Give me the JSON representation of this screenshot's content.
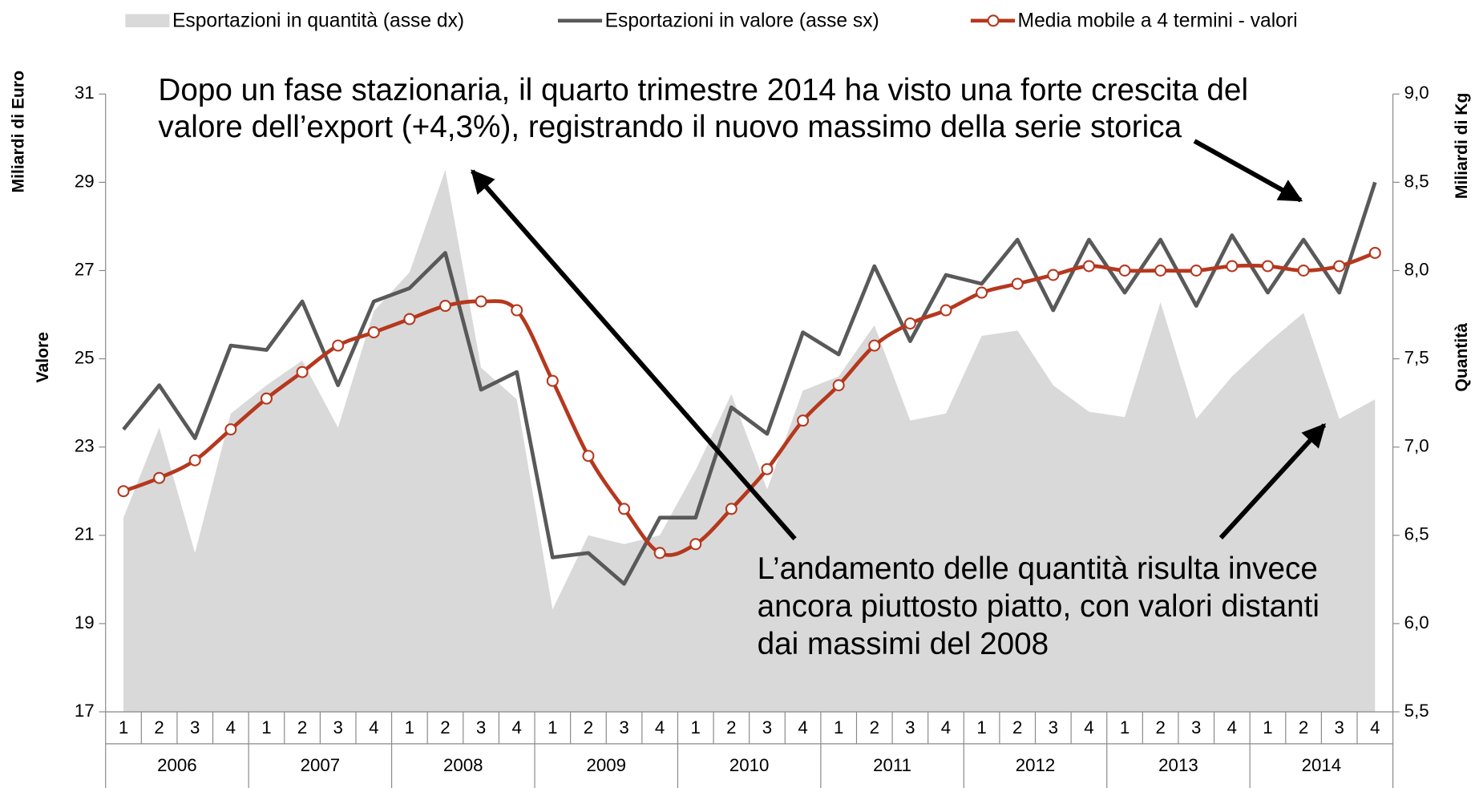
{
  "chart_data": {
    "type": "combo",
    "legend": {
      "position": "top"
    },
    "categories": [
      "1",
      "2",
      "3",
      "4",
      "1",
      "2",
      "3",
      "4",
      "1",
      "2",
      "3",
      "4",
      "1",
      "2",
      "3",
      "4",
      "1",
      "2",
      "3",
      "4",
      "1",
      "2",
      "3",
      "4",
      "1",
      "2",
      "3",
      "4",
      "1",
      "2",
      "3",
      "4",
      "1",
      "2",
      "3",
      "4"
    ],
    "groups": [
      "2006",
      "2007",
      "2008",
      "2009",
      "2010",
      "2011",
      "2012",
      "2013",
      "2014"
    ],
    "ylabel_top": "Miliardi di Euro",
    "ylabel": "Valore",
    "y2label_top": "Miliardi di Kg",
    "y2label": "Quantità",
    "ylim": [
      17,
      31
    ],
    "yticks": [
      17,
      19,
      21,
      23,
      25,
      27,
      29,
      31
    ],
    "y2lim": [
      5.5,
      9.0
    ],
    "y2ticks": [
      {
        "value": 5.5,
        "label": "5,5"
      },
      {
        "value": 6.0,
        "label": "6,0"
      },
      {
        "value": 6.5,
        "label": "6,5"
      },
      {
        "value": 7.0,
        "label": "7,0"
      },
      {
        "value": 7.5,
        "label": "7,5"
      },
      {
        "value": 8.0,
        "label": "8,0"
      },
      {
        "value": 8.5,
        "label": "8,5"
      },
      {
        "value": 9.0,
        "label": "9,0"
      }
    ],
    "series": [
      {
        "name": "Esportazioni in quantità (asse dx)",
        "type": "area",
        "axis": "y2",
        "color": "#d9d9d9",
        "values": [
          6.6,
          7.11,
          6.4,
          7.19,
          7.35,
          7.49,
          7.11,
          7.77,
          7.99,
          8.57,
          7.45,
          7.27,
          6.08,
          6.5,
          6.45,
          6.5,
          6.87,
          7.3,
          6.76,
          7.32,
          7.4,
          7.69,
          7.15,
          7.19,
          7.63,
          7.66,
          7.35,
          7.2,
          7.17,
          7.82,
          7.16,
          7.4,
          7.59,
          7.76,
          7.16,
          7.27
        ]
      },
      {
        "name": "Esportazioni in valore (asse sx)",
        "type": "line",
        "color": "#595959",
        "values": [
          23.4,
          24.4,
          23.2,
          25.3,
          25.2,
          26.3,
          24.4,
          26.3,
          26.6,
          27.4,
          24.3,
          24.7,
          20.5,
          20.6,
          19.9,
          21.4,
          21.4,
          23.9,
          23.3,
          25.6,
          25.1,
          27.1,
          25.4,
          26.9,
          26.7,
          27.7,
          26.1,
          27.7,
          26.5,
          27.7,
          26.2,
          27.8,
          26.5,
          27.7,
          26.5,
          29.0
        ]
      },
      {
        "name": "Media mobile a 4 termini - valori",
        "type": "smooth",
        "color": "#b5381e",
        "marker": "circle",
        "values": [
          22.0,
          22.3,
          22.7,
          23.4,
          24.1,
          24.7,
          25.3,
          25.6,
          25.9,
          26.2,
          26.3,
          26.1,
          24.5,
          22.8,
          21.6,
          20.6,
          20.8,
          21.6,
          22.5,
          23.6,
          24.4,
          25.3,
          25.8,
          26.1,
          26.5,
          26.7,
          26.9,
          27.1,
          27.0,
          27.0,
          27.0,
          27.1,
          27.1,
          27.0,
          27.1,
          27.4
        ]
      }
    ],
    "annotations": [
      {
        "lines": [
          "Dopo un fase stazionaria, il quarto trimestre 2014 ha visto una forte crescita del",
          "valore dell’export (+4,3%), registrando il nuovo massimo della serie storica"
        ]
      },
      {
        "lines": [
          "L’andamento delle quantità risulta invece",
          "ancora piuttosto piatto, con valori distanti",
          "dai massimi del 2008"
        ]
      }
    ]
  }
}
